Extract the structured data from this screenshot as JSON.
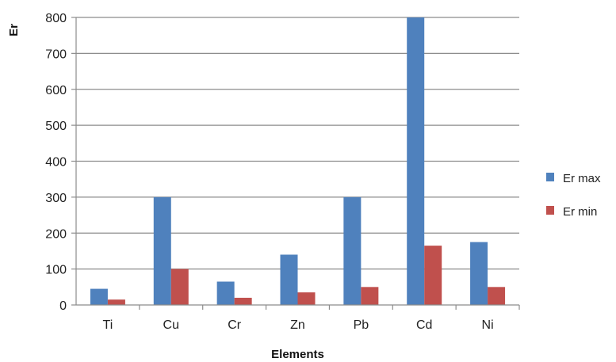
{
  "chart_data": {
    "type": "bar",
    "categories": [
      "Ti",
      "Cu",
      "Cr",
      "Zn",
      "Pb",
      "Cd",
      "Ni"
    ],
    "series": [
      {
        "name": "Er max",
        "color": "#4f81bd",
        "values": [
          45,
          300,
          65,
          140,
          300,
          800,
          175
        ]
      },
      {
        "name": "Er min",
        "color": "#c0504d",
        "values": [
          15,
          100,
          20,
          35,
          50,
          165,
          50
        ]
      }
    ],
    "title": "",
    "xlabel": "Elements",
    "ylabel": "Er",
    "ylim": [
      0,
      800
    ],
    "yticks": [
      0,
      100,
      200,
      300,
      400,
      500,
      600,
      700,
      800
    ],
    "grid": true,
    "legend_position": "right"
  }
}
